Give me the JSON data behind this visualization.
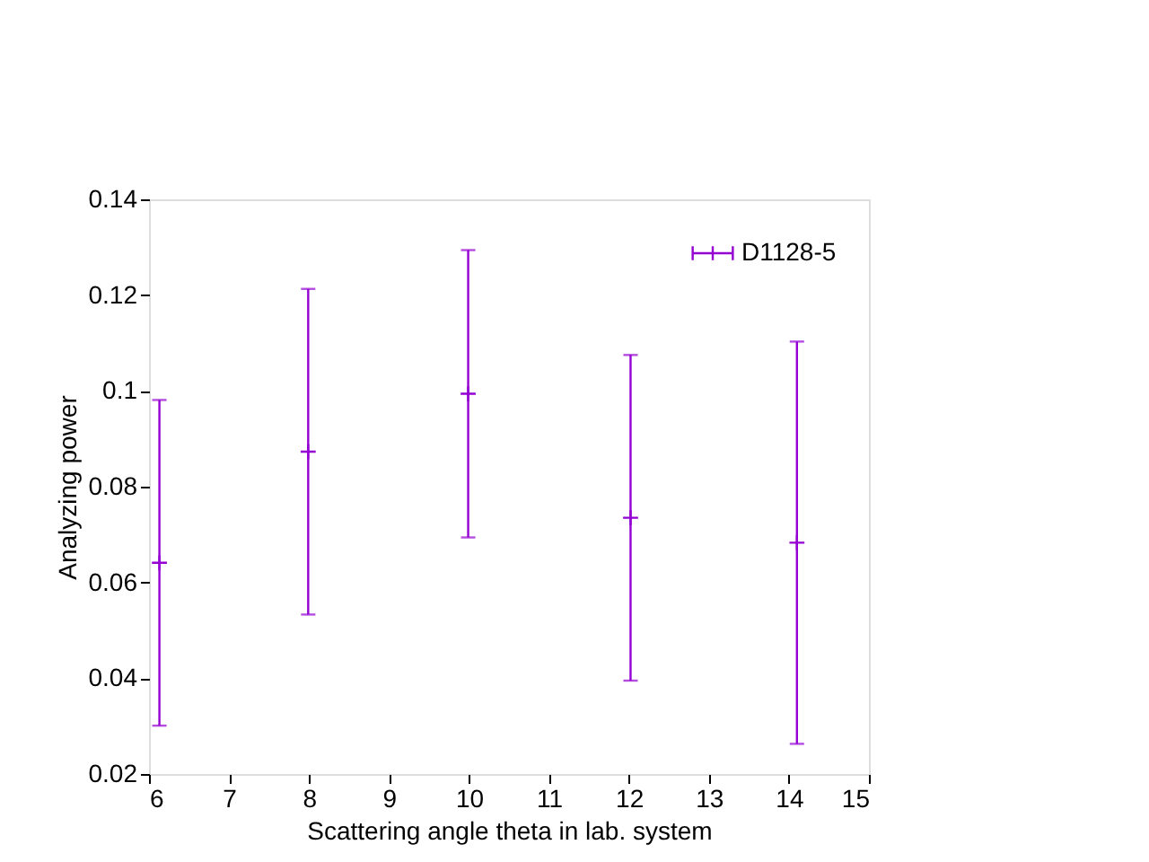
{
  "chart_data": {
    "type": "scatter",
    "xlabel": "Scattering angle theta in lab. system",
    "ylabel": "Analyzing power",
    "x": [
      6.13,
      7.99,
      9.99,
      12.02,
      14.1
    ],
    "series": [
      {
        "name": "D1128-5",
        "color": "#9400d3",
        "values": [
          0.0641,
          0.0873,
          0.0994,
          0.0735,
          0.0683
        ],
        "errors": [
          0.034,
          0.034,
          0.03,
          0.034,
          0.042
        ]
      }
    ],
    "xlim": [
      6,
      15
    ],
    "xticks": [
      6,
      7,
      8,
      9,
      10,
      11,
      12,
      13,
      14,
      15
    ],
    "ylim": [
      0.02,
      0.14
    ],
    "yticks": [
      0.02,
      0.04,
      0.06,
      0.08,
      0.1,
      0.12,
      0.14
    ],
    "grid": false,
    "marker": "cross",
    "legend": "top right"
  }
}
